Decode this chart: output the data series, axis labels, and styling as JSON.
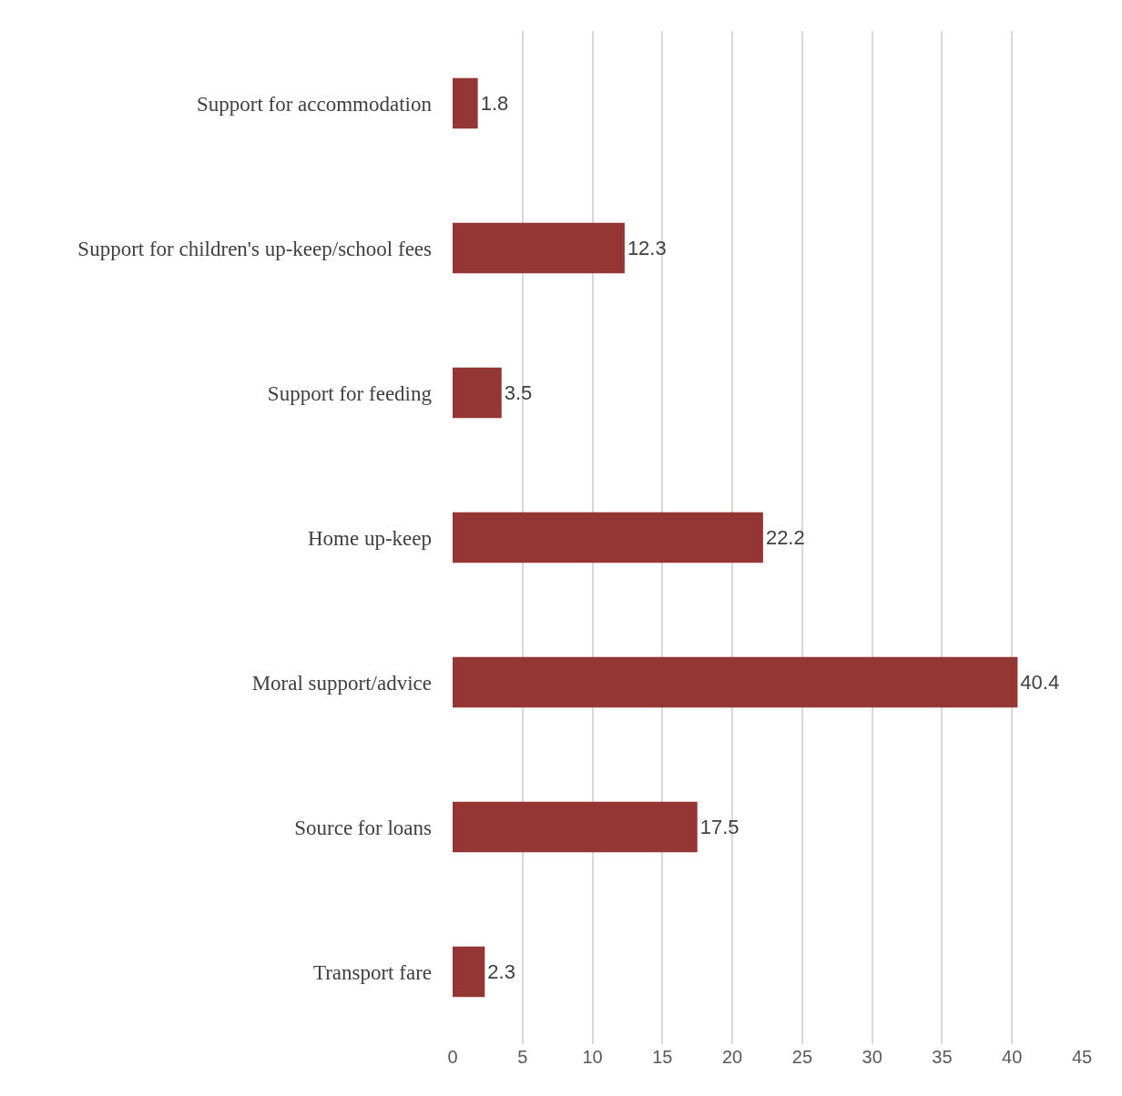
{
  "chart_data": {
    "type": "bar",
    "orientation": "horizontal",
    "categories": [
      "Support for accommodation",
      "Support for children's up-keep/school fees",
      "Support for feeding",
      "Home up-keep",
      "Moral support/advice",
      "Source for loans",
      "Transport fare"
    ],
    "values": [
      1.8,
      12.3,
      3.5,
      22.2,
      40.4,
      17.5,
      2.3
    ],
    "color": "#943634",
    "xlim": [
      0,
      45
    ],
    "xticks": [
      0,
      5,
      10,
      15,
      20,
      25,
      30,
      35,
      40,
      45
    ],
    "grid": "x",
    "data_labels": true
  }
}
